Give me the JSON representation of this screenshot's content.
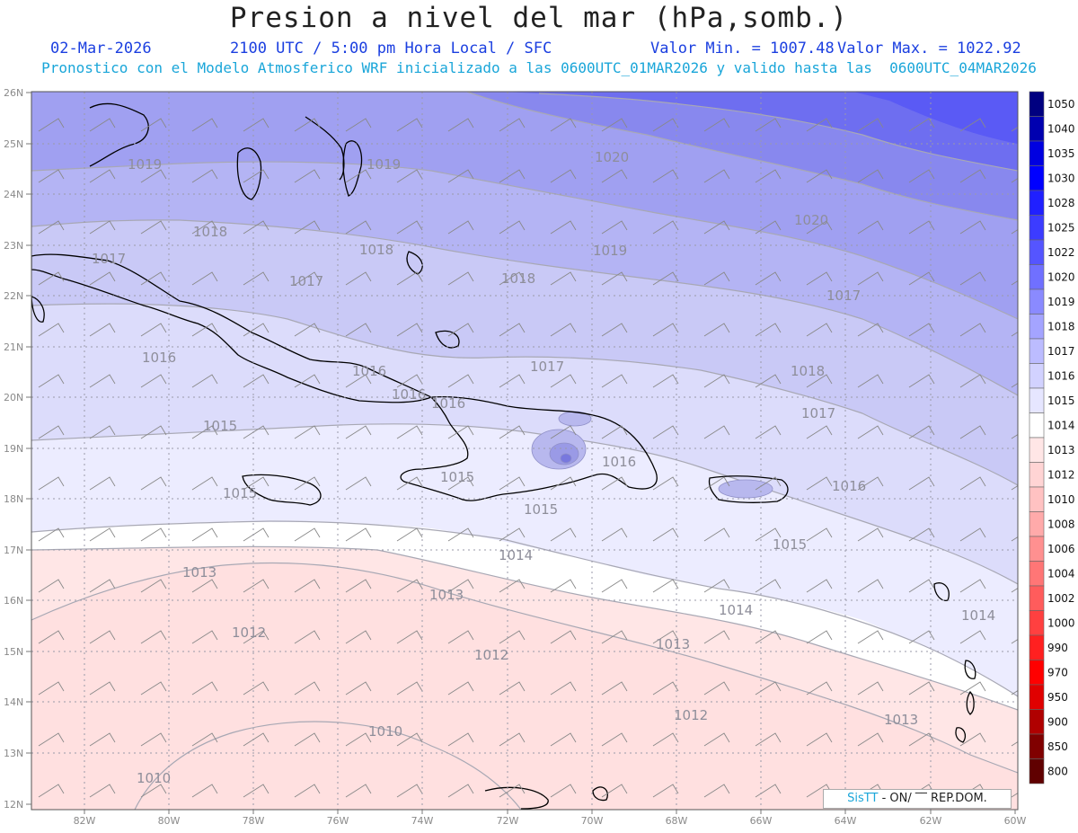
{
  "title": "Presion a nivel del mar (hPa,somb.)",
  "header": {
    "date": "02-Mar-2026",
    "time": "2100 UTC / 5:00 pm Hora Local / SFC",
    "vmin": "Valor Min. = 1007.48",
    "vmax": "Valor Max. = 1022.92",
    "model_line": "Pronostico con el Modelo Atmosferico WRF inicializado a las 0600UTC_01MAR2026 y valido hasta las  0600UTC_04MAR2026"
  },
  "axes": {
    "lat_labels": [
      "26N",
      "25N",
      "24N",
      "23N",
      "22N",
      "21N",
      "20N",
      "19N",
      "18N",
      "17N",
      "16N",
      "15N",
      "14N",
      "13N",
      "12N"
    ],
    "lon_labels": [
      "82W",
      "80W",
      "78W",
      "76W",
      "74W",
      "72W",
      "70W",
      "68W",
      "66W",
      "64W",
      "62W",
      "60W"
    ]
  },
  "colorbar": {
    "levels": [
      "1050",
      "1040",
      "1035",
      "1030",
      "1028",
      "1025",
      "1022",
      "1020",
      "1019",
      "1018",
      "1017",
      "1016",
      "1015",
      "1014",
      "1013",
      "1012",
      "1010",
      "1008",
      "1006",
      "1004",
      "1002",
      "1000",
      "990",
      "970",
      "950",
      "900",
      "850",
      "800"
    ],
    "colors": [
      "#000080",
      "#0000b0",
      "#0000e0",
      "#0000ff",
      "#2020ff",
      "#3c3cff",
      "#5555ff",
      "#7070ff",
      "#8a8aff",
      "#a4a4ff",
      "#bcbcff",
      "#d2d2ff",
      "#e6e6ff",
      "#ffffff",
      "#ffe6e6",
      "#ffd4d4",
      "#ffc2c2",
      "#ffaaaa",
      "#ff9090",
      "#ff7676",
      "#ff5c5c",
      "#ff4040",
      "#ff2020",
      "#ff0000",
      "#e00000",
      "#b00000",
      "#800000",
      "#600000"
    ]
  },
  "contour_labels": [
    "1020",
    "1020",
    "1019",
    "1019",
    "1019",
    "1018",
    "1018",
    "1018",
    "1018",
    "1017",
    "1017",
    "1017",
    "1017",
    "1017",
    "1016",
    "1016",
    "1016",
    "1016",
    "1016",
    "1016",
    "1015",
    "1015",
    "1015",
    "1015",
    "1015",
    "1014",
    "1014",
    "1014",
    "1013",
    "1013",
    "1013",
    "1013",
    "1012",
    "1012",
    "1012",
    "1010",
    "1010"
  ],
  "credit": {
    "logo": "SisTT",
    "text": " - ON/ ‾‾ REP.DOM."
  }
}
